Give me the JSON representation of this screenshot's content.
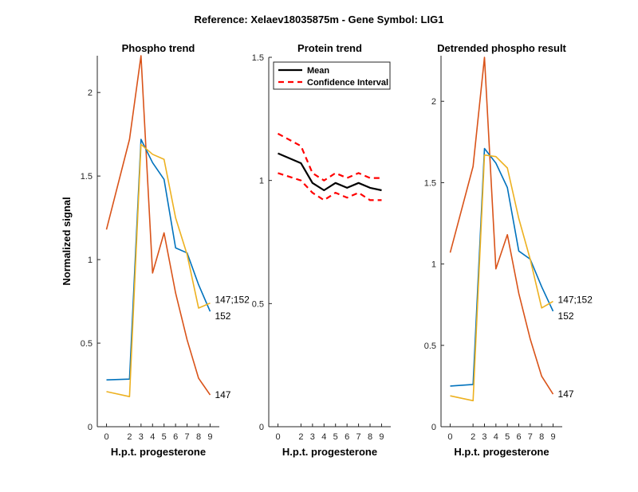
{
  "title": "Reference:  Xelaev18035875m - Gene Symbol:  LIG1",
  "colors": {
    "blue": "#0072BD",
    "orange": "#D95319",
    "yellow": "#EDB120",
    "mean": "#000000",
    "ci": "#FF0000"
  },
  "chart_data": [
    {
      "type": "line",
      "title": "Phospho trend",
      "xlabel": "H.p.t. progesterone",
      "ylabel": "Normalized signal",
      "xlim": [
        -0.8,
        9.8
      ],
      "ylim": [
        0,
        2.22
      ],
      "x_ticks": [
        0,
        2,
        3,
        4,
        5,
        6,
        7,
        8,
        9
      ],
      "y_ticks": [
        0,
        0.5,
        1,
        1.5,
        2
      ],
      "y_tick_labels": [
        "0",
        "0.5",
        "1",
        "1.5",
        "2"
      ],
      "x": [
        0,
        2,
        3,
        4,
        5,
        6,
        7,
        8,
        9
      ],
      "grid": false,
      "series": [
        {
          "color": "orange",
          "values": [
            1.18,
            1.72,
            2.22,
            0.92,
            1.16,
            0.8,
            0.52,
            0.29,
            0.19
          ]
        },
        {
          "color": "blue",
          "values": [
            0.28,
            0.285,
            1.72,
            1.58,
            1.48,
            1.07,
            1.04,
            0.85,
            0.69
          ]
        },
        {
          "color": "yellow",
          "values": [
            0.21,
            0.18,
            1.69,
            1.63,
            1.6,
            1.25,
            1.03,
            0.71,
            0.74
          ]
        }
      ],
      "line_labels": [
        {
          "text": "147;152",
          "y": 0.74
        },
        {
          "text": "152",
          "y": 0.69
        },
        {
          "text": "147",
          "y": 0.19
        }
      ]
    },
    {
      "type": "line",
      "title": "Protein trend",
      "xlabel": "H.p.t. progesterone",
      "xlim": [
        -0.8,
        9.8
      ],
      "ylim": [
        0,
        1.5
      ],
      "x_ticks": [
        0,
        2,
        3,
        4,
        5,
        6,
        7,
        8,
        9
      ],
      "y_ticks": [
        0,
        0.5,
        1,
        1.5
      ],
      "y_tick_labels": [
        "0",
        "0.5",
        "1",
        "1.5"
      ],
      "x": [
        0,
        2,
        3,
        4,
        5,
        6,
        7,
        8,
        9
      ],
      "grid": false,
      "legend_position": "top-left",
      "series": [
        {
          "name": "Mean",
          "color": "mean",
          "style": "solid",
          "values": [
            1.11,
            1.07,
            0.99,
            0.96,
            0.99,
            0.97,
            0.99,
            0.97,
            0.96
          ]
        },
        {
          "name": "Confidence Interval",
          "color": "ci",
          "style": "dashed",
          "values": [
            1.19,
            1.14,
            1.03,
            1.0,
            1.03,
            1.01,
            1.03,
            1.01,
            1.01
          ]
        },
        {
          "name": "",
          "color": "ci",
          "style": "dashed",
          "values": [
            1.03,
            1.0,
            0.95,
            0.92,
            0.95,
            0.93,
            0.95,
            0.92,
            0.92
          ]
        }
      ]
    },
    {
      "type": "line",
      "title": "Detrended phospho result",
      "xlabel": "H.p.t. progesterone",
      "xlim": [
        -0.8,
        9.8
      ],
      "ylim": [
        0,
        2.28
      ],
      "x_ticks": [
        0,
        2,
        3,
        4,
        5,
        6,
        7,
        8,
        9
      ],
      "y_ticks": [
        0,
        0.5,
        1,
        1.5,
        2
      ],
      "y_tick_labels": [
        "0",
        "0.5",
        "1",
        "1.5",
        "2"
      ],
      "x": [
        0,
        2,
        3,
        4,
        5,
        6,
        7,
        8,
        9
      ],
      "grid": false,
      "series": [
        {
          "color": "orange",
          "values": [
            1.07,
            1.6,
            2.27,
            0.97,
            1.18,
            0.82,
            0.54,
            0.31,
            0.2
          ]
        },
        {
          "color": "blue",
          "values": [
            0.25,
            0.26,
            1.71,
            1.62,
            1.47,
            1.08,
            1.03,
            0.86,
            0.71
          ]
        },
        {
          "color": "yellow",
          "values": [
            0.19,
            0.16,
            1.67,
            1.66,
            1.59,
            1.28,
            1.03,
            0.73,
            0.77
          ]
        }
      ],
      "line_labels": [
        {
          "text": "147;152",
          "y": 0.76
        },
        {
          "text": "152",
          "y": 0.71
        },
        {
          "text": "147",
          "y": 0.2
        }
      ]
    }
  ]
}
